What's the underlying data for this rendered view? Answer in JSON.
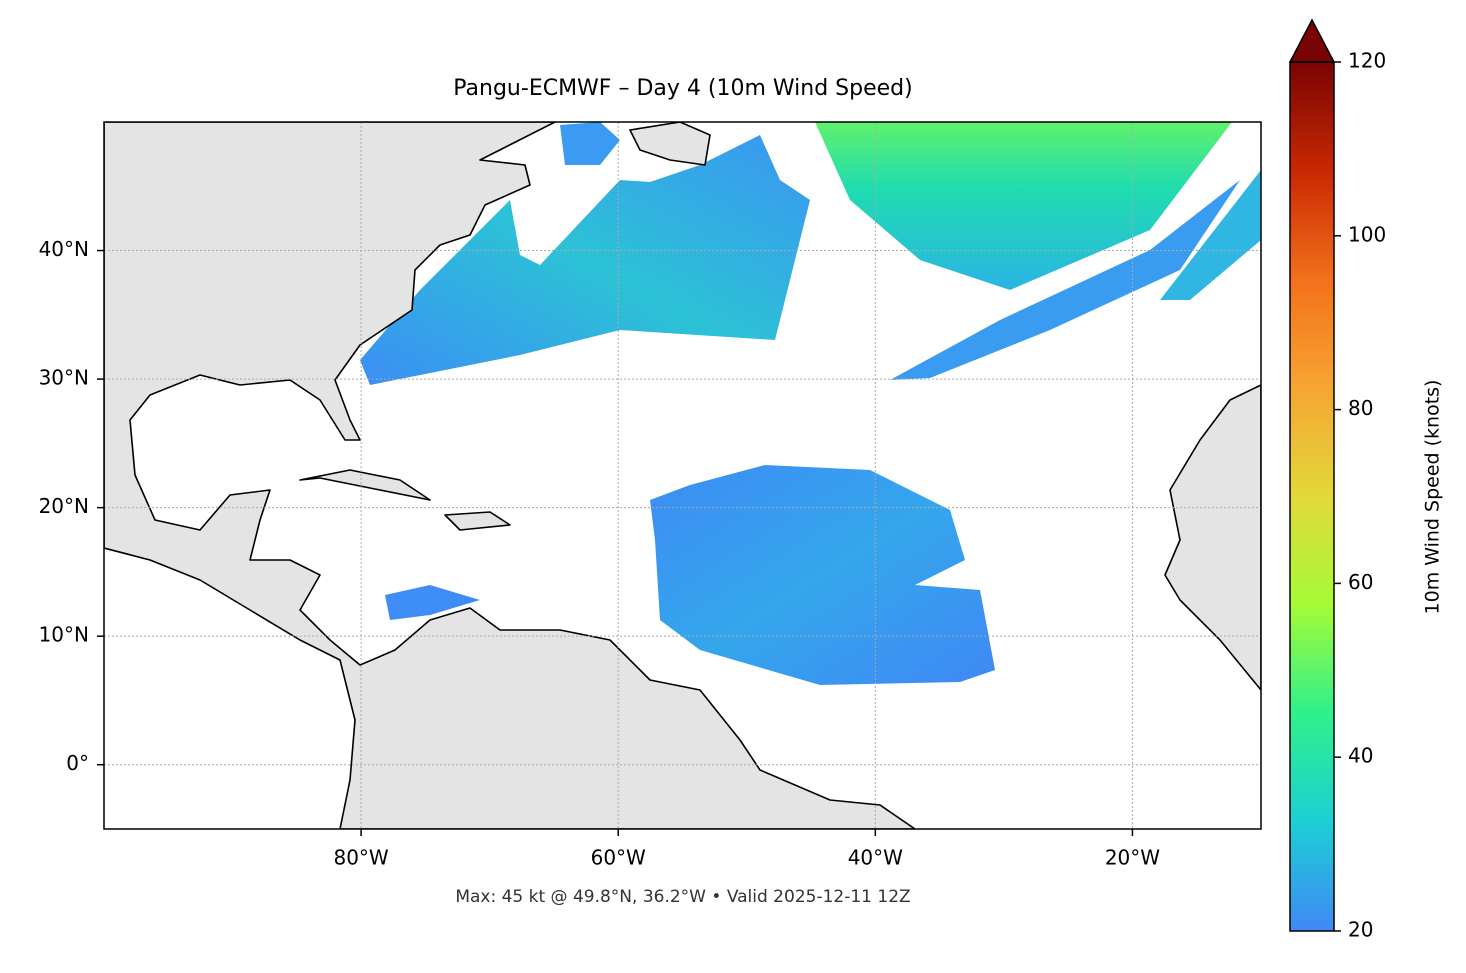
{
  "chart_data": {
    "type": "map",
    "title": "Pangu-ECMWF – Day 4 (10m Wind Speed)",
    "caption": "Max: 45 kt @ 49.8°N, 36.2°W • Valid 2025-12-11 12Z",
    "xlim": [
      -100,
      -10
    ],
    "ylim": [
      -5,
      50
    ],
    "xticks": [
      {
        "value": -80,
        "label": "80°W"
      },
      {
        "value": -60,
        "label": "60°W"
      },
      {
        "value": -40,
        "label": "40°W"
      },
      {
        "value": -20,
        "label": "20°W"
      }
    ],
    "yticks": [
      {
        "value": 0,
        "label": "0°"
      },
      {
        "value": 10,
        "label": "10°N"
      },
      {
        "value": 20,
        "label": "20°N"
      },
      {
        "value": 30,
        "label": "30°N"
      },
      {
        "value": 40,
        "label": "40°N"
      }
    ],
    "grid": true,
    "colorbar": {
      "label": "10m Wind Speed (knots)",
      "lim": [
        20,
        120
      ],
      "ticks": [
        20,
        40,
        60,
        80,
        100,
        120
      ],
      "colors": [
        "#4088f5",
        "#1ccfd6",
        "#2ef08c",
        "#a5fb36",
        "#e2d83a",
        "#f6a532",
        "#f3701b",
        "#c82803",
        "#7a0403"
      ],
      "extend": "max"
    }
  }
}
